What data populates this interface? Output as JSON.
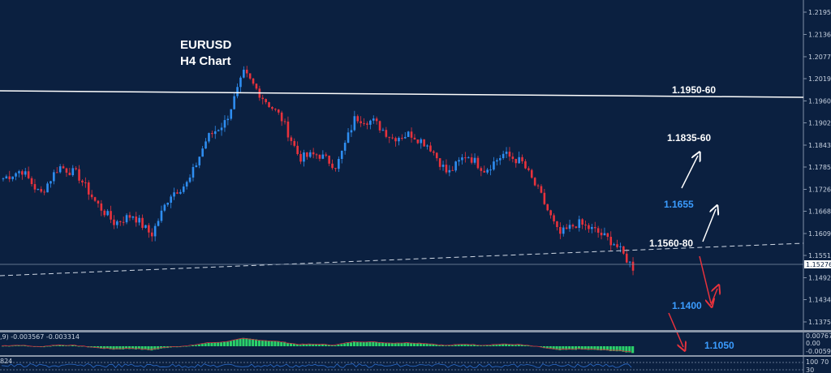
{
  "chart_data": {
    "type": "candlestick",
    "title": "EURUSD",
    "subtitle": "H4 Chart",
    "y_ticks": [
      "1.21950",
      "1.21360",
      "1.20770",
      "1.20190",
      "1.19600",
      "1.19020",
      "1.18430",
      "1.17850",
      "1.17260",
      "1.16680",
      "1.16090",
      "1.15510",
      "1.14920",
      "1.14340",
      "1.13750"
    ],
    "ylim": [
      1.1375,
      1.2195
    ],
    "current_price": "1.15276",
    "close_path": [
      1.1755,
      1.1777,
      1.1712,
      1.1787,
      1.1766,
      1.1691,
      1.1637,
      1.1658,
      1.1605,
      1.1712,
      1.1744,
      1.1862,
      1.1905,
      1.2034,
      1.197,
      1.1916,
      1.1809,
      1.1819,
      1.1787,
      1.1916,
      1.1905,
      1.1862,
      1.1873,
      1.1841,
      1.1766,
      1.1819,
      1.1777,
      1.1819,
      1.1798,
      1.1712,
      1.1605,
      1.1637,
      1.1615,
      1.1583,
      1.1519
    ],
    "colors": {
      "up": "#2e8df0",
      "down": "#e8323c",
      "background": "#0b2040",
      "annotation_blue": "#3b9cff",
      "annotation_red": "#e8323c"
    },
    "annotations": [
      {
        "label": "1.1950-60",
        "color": "white"
      },
      {
        "label": "1.1835-60",
        "color": "white"
      },
      {
        "label": "1.1655",
        "color": "blue"
      },
      {
        "label": "1.1560-80",
        "color": "white"
      },
      {
        "label": "1.1400",
        "color": "blue"
      },
      {
        "label": "1.1050",
        "color": "blue"
      }
    ],
    "macd": {
      "label": ",9) -0.003567 -0.003314",
      "y_ticks": [
        "0.007671",
        "0.00",
        "-0.005928"
      ]
    },
    "oscillator": {
      "label": "824",
      "y_ticks": [
        "100",
        "70",
        "30"
      ]
    }
  }
}
